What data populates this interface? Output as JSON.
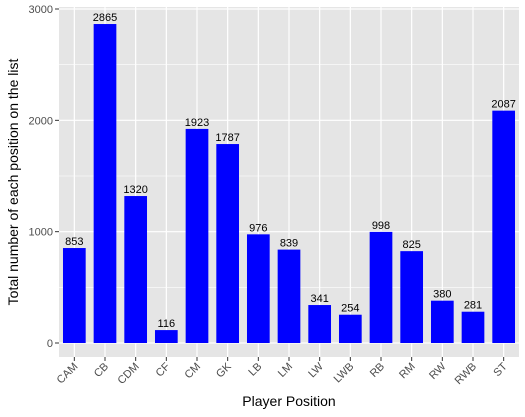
{
  "chart_data": {
    "type": "bar",
    "xlabel": "Player Position",
    "ylabel": "Total number of each position on the list",
    "categories": [
      "CAM",
      "CB",
      "CDM",
      "CF",
      "CM",
      "GK",
      "LB",
      "LM",
      "LW",
      "LWB",
      "RB",
      "RM",
      "RW",
      "RWB",
      "ST"
    ],
    "values": [
      853,
      2865,
      1320,
      116,
      1923,
      1787,
      976,
      839,
      341,
      254,
      998,
      825,
      380,
      281,
      2087
    ],
    "ylim": [
      0,
      3000
    ],
    "yticks": [
      0,
      1000,
      2000,
      3000
    ],
    "grid": true,
    "legend": "none",
    "colors": {
      "bar": "#0000ff",
      "panel": "#e5e5e5",
      "grid": "#ffffff"
    }
  }
}
